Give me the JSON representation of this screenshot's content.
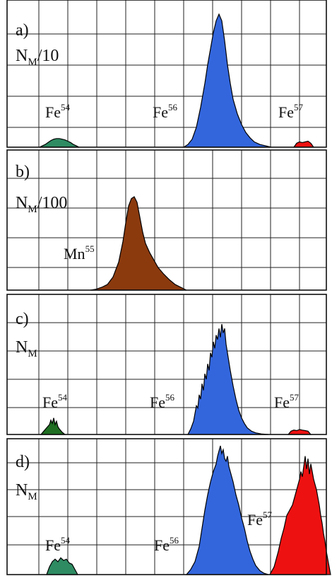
{
  "chart_data": [
    {
      "type": "area",
      "panel": "a)",
      "ylabel_main": "N",
      "ylabel_sub": "M",
      "ylabel_suffix": "/10",
      "grid": true,
      "series": [
        {
          "element": "Fe",
          "mass": "54",
          "color": "#2e8b62",
          "x": [
            56,
            60,
            64,
            68,
            72,
            76,
            80,
            84,
            88,
            92,
            96,
            100,
            104,
            108,
            112
          ],
          "y": [
            0,
            0.01,
            0.02,
            0.035,
            0.05,
            0.06,
            0.065,
            0.065,
            0.06,
            0.055,
            0.045,
            0.035,
            0.02,
            0.01,
            0
          ]
        },
        {
          "element": "Fe",
          "mass": "56",
          "color": "#3366dd",
          "x": [
            260,
            266,
            272,
            278,
            284,
            290,
            294,
            298,
            302,
            306,
            310,
            314,
            318,
            322,
            326,
            330,
            336,
            342,
            348,
            354,
            360,
            368,
            376,
            384
          ],
          "y": [
            0,
            0.02,
            0.06,
            0.15,
            0.3,
            0.48,
            0.62,
            0.74,
            0.86,
            0.95,
            1.0,
            0.95,
            0.8,
            0.62,
            0.48,
            0.36,
            0.25,
            0.17,
            0.11,
            0.07,
            0.04,
            0.02,
            0.01,
            0
          ]
        },
        {
          "element": "Fe",
          "mass": "57",
          "color": "#ee1111",
          "x": [
            416,
            420,
            424,
            428,
            432,
            436,
            440,
            444
          ],
          "y": [
            0,
            0.03,
            0.04,
            0.035,
            0.04,
            0.045,
            0.03,
            0
          ]
        }
      ]
    },
    {
      "type": "area",
      "panel": "b)",
      "ylabel_main": "N",
      "ylabel_sub": "M",
      "ylabel_suffix": "/100",
      "grid": true,
      "series": [
        {
          "element": "Mn",
          "mass": "55",
          "color": "#8b3a0e",
          "x": [
            128,
            136,
            144,
            152,
            160,
            168,
            174,
            178,
            182,
            186,
            190,
            194,
            198,
            202,
            206,
            212,
            218,
            224,
            232,
            240,
            248,
            256,
            264
          ],
          "y": [
            0,
            0.01,
            0.03,
            0.06,
            0.14,
            0.3,
            0.52,
            0.72,
            0.9,
            0.98,
            1.0,
            0.94,
            0.78,
            0.62,
            0.5,
            0.4,
            0.32,
            0.24,
            0.17,
            0.11,
            0.06,
            0.03,
            0
          ]
        }
      ]
    },
    {
      "type": "area",
      "panel": "c)",
      "ylabel_main": "N",
      "ylabel_sub": "M",
      "ylabel_suffix": "",
      "grid": true,
      "series": [
        {
          "element": "Fe",
          "mass": "54",
          "color": "#1f6e22",
          "x": [
            58,
            62,
            66,
            70,
            72,
            74,
            76,
            78,
            80,
            82,
            84,
            88,
            92
          ],
          "y": [
            0,
            0.03,
            0.06,
            0.09,
            0.13,
            0.1,
            0.15,
            0.09,
            0.12,
            0.07,
            0.05,
            0.02,
            0
          ]
        },
        {
          "element": "Fe",
          "mass": "56",
          "color": "#3366dd",
          "x": [
            266,
            270,
            274,
            278,
            280,
            282,
            284,
            286,
            288,
            290,
            292,
            294,
            296,
            298,
            300,
            302,
            304,
            306,
            308,
            310,
            312,
            314,
            316,
            318,
            320,
            322,
            326,
            330,
            334,
            338,
            342,
            346,
            350,
            356,
            362,
            370,
            380
          ],
          "y": [
            0,
            0.05,
            0.12,
            0.26,
            0.24,
            0.36,
            0.32,
            0.46,
            0.4,
            0.55,
            0.5,
            0.64,
            0.58,
            0.74,
            0.7,
            0.84,
            0.78,
            0.9,
            0.86,
            0.96,
            0.88,
            1.0,
            0.92,
            0.96,
            0.82,
            0.74,
            0.58,
            0.44,
            0.32,
            0.22,
            0.15,
            0.1,
            0.06,
            0.03,
            0.015,
            0.005,
            0
          ]
        },
        {
          "element": "Fe",
          "mass": "57",
          "color": "#ee1111",
          "x": [
            408,
            412,
            416,
            420,
            424,
            428,
            432,
            436,
            440
          ],
          "y": [
            0,
            0.03,
            0.04,
            0.035,
            0.045,
            0.04,
            0.035,
            0.03,
            0
          ]
        }
      ]
    },
    {
      "type": "area",
      "panel": "d)",
      "ylabel_main": "N",
      "ylabel_sub": "M",
      "ylabel_suffix": "",
      "grid": true,
      "series": [
        {
          "element": "Fe",
          "mass": "54",
          "color": "#2e8b62",
          "x": [
            66,
            70,
            74,
            78,
            82,
            86,
            90,
            94,
            98,
            102,
            106,
            110
          ],
          "y": [
            0,
            0.06,
            0.1,
            0.12,
            0.1,
            0.13,
            0.11,
            0.12,
            0.09,
            0.08,
            0.04,
            0
          ]
        },
        {
          "element": "Fe",
          "mass": "56",
          "color": "#3366dd",
          "x": [
            264,
            270,
            276,
            282,
            286,
            290,
            294,
            298,
            302,
            306,
            308,
            310,
            312,
            314,
            316,
            318,
            320,
            322,
            324,
            326,
            330,
            334,
            338,
            342,
            346,
            350,
            354,
            358,
            362,
            368,
            374,
            380
          ],
          "y": [
            0,
            0.04,
            0.1,
            0.22,
            0.36,
            0.5,
            0.62,
            0.72,
            0.8,
            0.86,
            0.92,
            0.96,
            1.0,
            0.94,
            0.97,
            0.9,
            0.88,
            0.92,
            0.84,
            0.8,
            0.72,
            0.62,
            0.54,
            0.44,
            0.36,
            0.26,
            0.18,
            0.12,
            0.07,
            0.03,
            0.01,
            0
          ]
        },
        {
          "element": "Fe",
          "mass": "57",
          "color": "#ee1111",
          "x": [
            382,
            388,
            394,
            398,
            402,
            406,
            410,
            414,
            418,
            422,
            424,
            426,
            428,
            430,
            432,
            434,
            436,
            438,
            440,
            442,
            444,
            446,
            448,
            450,
            452,
            454,
            456,
            458,
            460,
            462,
            464,
            466,
            468
          ],
          "y": [
            0,
            0.06,
            0.18,
            0.28,
            0.36,
            0.46,
            0.5,
            0.54,
            0.62,
            0.7,
            0.74,
            0.8,
            0.76,
            0.84,
            0.92,
            0.82,
            0.9,
            0.78,
            0.86,
            0.8,
            0.74,
            0.7,
            0.66,
            0.6,
            0.54,
            0.46,
            0.4,
            0.32,
            0.26,
            0.18,
            0.12,
            0.06,
            0
          ]
        }
      ]
    }
  ],
  "annotations": [
    {
      "text": "Fe",
      "sup": "54"
    },
    {
      "text": "Fe",
      "sup": "56"
    },
    {
      "text": "Fe",
      "sup": "57"
    },
    {
      "text": "Mn",
      "sup": "55"
    }
  ]
}
